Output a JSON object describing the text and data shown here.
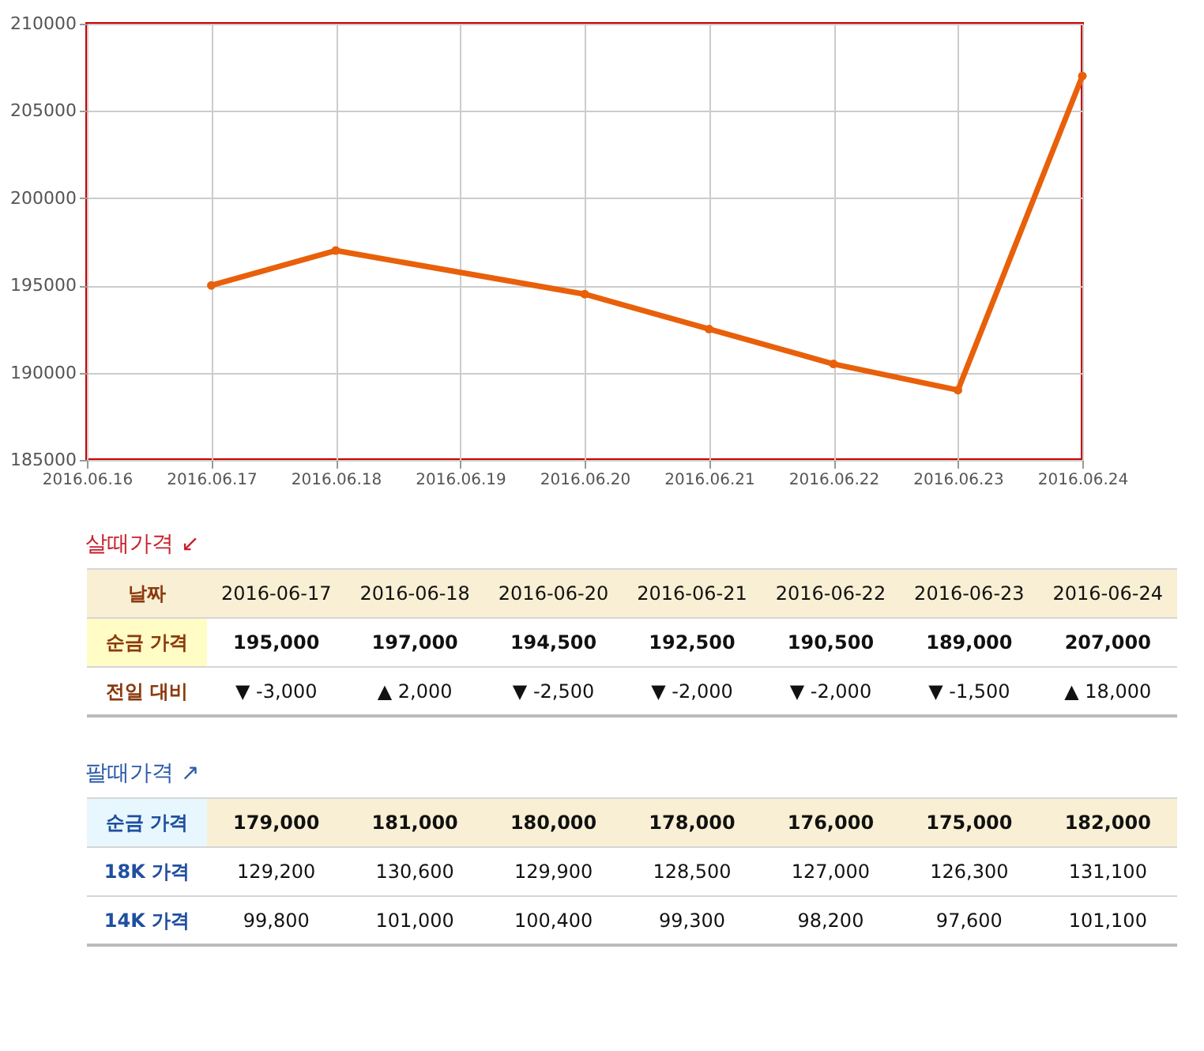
{
  "chart_data": [
    {
      "type": "line",
      "x": [
        "2016-06-17",
        "2016-06-18",
        "2016-06-20",
        "2016-06-21",
        "2016-06-22",
        "2016-06-23",
        "2016-06-24"
      ],
      "series": [
        {
          "color": "#e8600a",
          "values": [
            195000,
            197000,
            194500,
            192500,
            190500,
            189000,
            207000
          ]
        }
      ],
      "xlim": [
        "2016-06-16",
        "2016-06-24"
      ],
      "xticks": [
        {
          "value": "2016-06-16",
          "label": "2016.06.16"
        },
        {
          "value": "2016-06-17",
          "label": "2016.06.17"
        },
        {
          "value": "2016-06-18",
          "label": "2016.06.18"
        },
        {
          "value": "2016-06-19",
          "label": "2016.06.19"
        },
        {
          "value": "2016-06-20",
          "label": "2016.06.20"
        },
        {
          "value": "2016-06-21",
          "label": "2016.06.21"
        },
        {
          "value": "2016-06-22",
          "label": "2016.06.22"
        },
        {
          "value": "2016-06-23",
          "label": "2016.06.23"
        },
        {
          "value": "2016-06-24",
          "label": "2016.06.24"
        }
      ],
      "ylim": [
        185000,
        210000
      ],
      "yticks": [
        185000,
        190000,
        195000,
        200000,
        205000,
        210000
      ],
      "grid": true,
      "marker": "circle",
      "line_style": "solid"
    },
    {
      "type": "other",
      "title": "살때가격 ↙",
      "xlabel": "날짜",
      "categories": [
        "2016-06-17",
        "2016-06-18",
        "2016-06-20",
        "2016-06-21",
        "2016-06-22",
        "2016-06-23",
        "2016-06-24"
      ],
      "y_categories": [
        "순금 가격",
        "전일 대비"
      ],
      "cell_labels": [
        [
          "195,000",
          "197,000",
          "194,500",
          "192,500",
          "190,500",
          "189,000",
          "207,000"
        ],
        [
          "▼ -3,000",
          "▲ 2,000",
          "▼ -2,500",
          "▼ -2,000",
          "▼ -2,000",
          "▼ -1,500",
          "▲ 18,000"
        ]
      ]
    },
    {
      "type": "other",
      "title": "팔때가격 ↗",
      "y_categories": [
        "순금 가격",
        "18K 가격",
        "14K 가격"
      ],
      "cell_labels": [
        [
          "179,000",
          "181,000",
          "180,000",
          "178,000",
          "176,000",
          "175,000",
          "182,000"
        ],
        [
          "129,200",
          "130,600",
          "129,900",
          "128,500",
          "127,000",
          "126,300",
          "131,100"
        ],
        [
          "99,800",
          "101,000",
          "100,400",
          "99,300",
          "98,200",
          "97,600",
          "101,100"
        ]
      ]
    }
  ]
}
